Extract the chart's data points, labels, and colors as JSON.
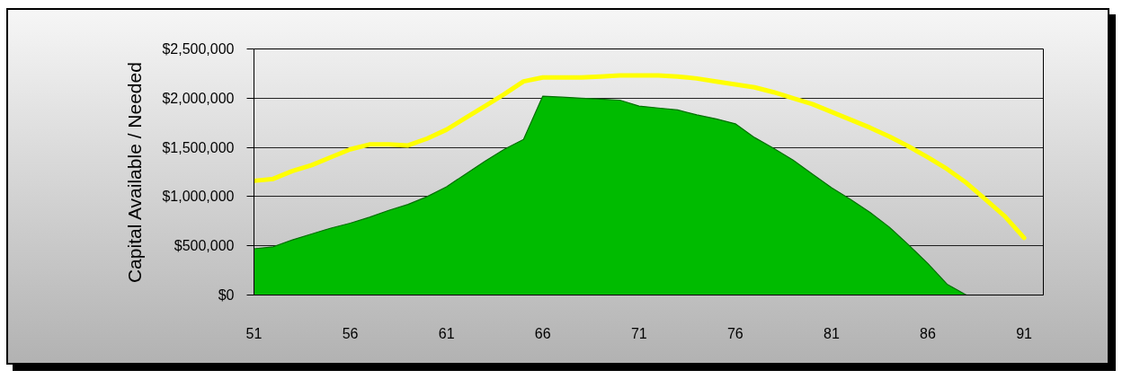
{
  "chart_data": {
    "type": "area",
    "ylabel": "Capital Available / Needed",
    "x": [
      51,
      52,
      53,
      54,
      55,
      56,
      57,
      58,
      59,
      60,
      61,
      62,
      63,
      64,
      65,
      66,
      67,
      68,
      69,
      70,
      71,
      72,
      73,
      74,
      75,
      76,
      77,
      78,
      79,
      80,
      81,
      82,
      83,
      84,
      85,
      86,
      87,
      88,
      89,
      90,
      91
    ],
    "xlim": [
      51,
      92
    ],
    "xticks": [
      51,
      56,
      61,
      66,
      71,
      76,
      81,
      86,
      91
    ],
    "ylim": [
      0,
      2500000
    ],
    "yticks": [
      {
        "value": 0,
        "label": "$0"
      },
      {
        "value": 500000,
        "label": "$500,000"
      },
      {
        "value": 1000000,
        "label": "$1,000,000"
      },
      {
        "value": 1500000,
        "label": "$1,500,000"
      },
      {
        "value": 2000000,
        "label": "$2,000,000"
      },
      {
        "value": 2500000,
        "label": "$2,500,000"
      }
    ],
    "grid": "y",
    "series": [
      {
        "color": "#00bb00",
        "values": [
          470000,
          490000,
          560000,
          620000,
          680000,
          730000,
          790000,
          860000,
          920000,
          1000000,
          1100000,
          1230000,
          1360000,
          1480000,
          1580000,
          2020000,
          2010000,
          2000000,
          1990000,
          1980000,
          1920000,
          1900000,
          1880000,
          1830000,
          1790000,
          1740000,
          1600000,
          1490000,
          1370000,
          1230000,
          1090000,
          970000,
          840000,
          690000,
          510000,
          320000,
          110000,
          0,
          0,
          0,
          0
        ]
      },
      {
        "type": "line",
        "color": "#ffff00",
        "values": [
          1160000,
          1180000,
          1260000,
          1320000,
          1400000,
          1480000,
          1530000,
          1530000,
          1520000,
          1590000,
          1680000,
          1800000,
          1920000,
          2040000,
          2170000,
          2210000,
          2210000,
          2210000,
          2220000,
          2230000,
          2230000,
          2230000,
          2220000,
          2200000,
          2170000,
          2140000,
          2110000,
          2060000,
          2000000,
          1940000,
          1860000,
          1780000,
          1700000,
          1610000,
          1510000,
          1400000,
          1280000,
          1140000,
          970000,
          800000,
          580000
        ]
      }
    ]
  }
}
